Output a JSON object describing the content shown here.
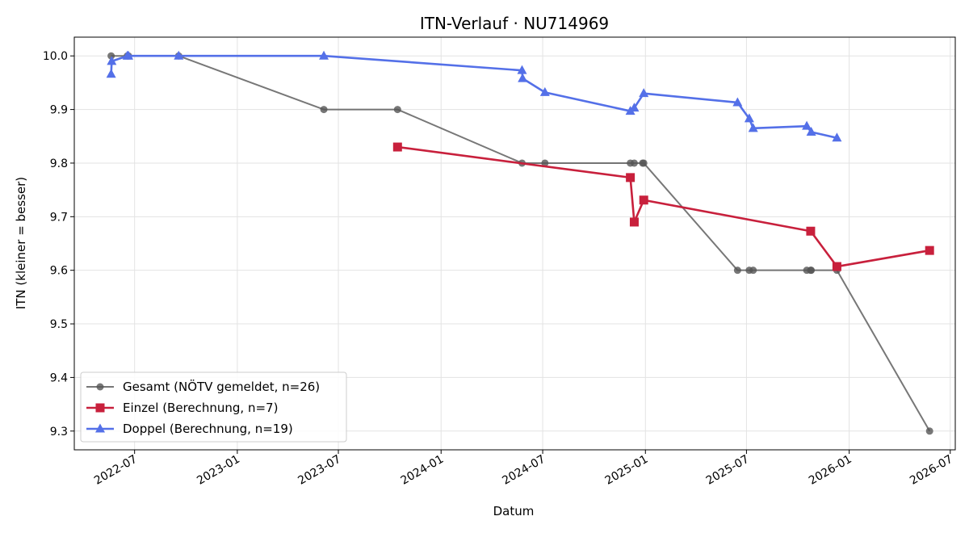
{
  "chart_data": {
    "type": "line",
    "title": "ITN-Verlauf · NU714969",
    "xlabel": "Datum",
    "ylabel": "ITN  (kleiner = besser)",
    "xlim": [
      "2022-03-15",
      "2026-07-10"
    ],
    "ylim": [
      9.265,
      10.035
    ],
    "x_ticks": [
      "2022-07",
      "2023-01",
      "2023-07",
      "2024-01",
      "2024-07",
      "2025-01",
      "2025-07",
      "2026-01",
      "2026-07"
    ],
    "y_ticks": [
      "9.3",
      "9.4",
      "9.5",
      "9.6",
      "9.7",
      "9.8",
      "9.9",
      "10.0"
    ],
    "grid": true,
    "legend_position": "lower-left",
    "series": [
      {
        "name": "Gesamt (NÖTV gemeldet, n=26)",
        "color": "#555555",
        "marker": "circle",
        "points": [
          {
            "x": "2022-05-20",
            "y": 10.0
          },
          {
            "x": "2022-06-18",
            "y": 10.0
          },
          {
            "x": "2022-06-20",
            "y": 10.0
          },
          {
            "x": "2022-09-18",
            "y": 10.0
          },
          {
            "x": "2023-06-05",
            "y": 9.9
          },
          {
            "x": "2023-10-15",
            "y": 9.9
          },
          {
            "x": "2024-05-25",
            "y": 9.8
          },
          {
            "x": "2024-07-05",
            "y": 9.8
          },
          {
            "x": "2024-12-05",
            "y": 9.8
          },
          {
            "x": "2024-12-12",
            "y": 9.8
          },
          {
            "x": "2024-12-27",
            "y": 9.8
          },
          {
            "x": "2024-12-29",
            "y": 9.8
          },
          {
            "x": "2025-06-15",
            "y": 9.6
          },
          {
            "x": "2025-07-06",
            "y": 9.6
          },
          {
            "x": "2025-07-13",
            "y": 9.6
          },
          {
            "x": "2025-10-17",
            "y": 9.6
          },
          {
            "x": "2025-10-24",
            "y": 9.6
          },
          {
            "x": "2025-10-25",
            "y": 9.6
          },
          {
            "x": "2025-12-10",
            "y": 9.6
          },
          {
            "x": "2026-05-25",
            "y": 9.3
          }
        ]
      },
      {
        "name": "Einzel (Berechnung, n=7)",
        "color": "#c8203c",
        "marker": "square",
        "points": [
          {
            "x": "2023-10-15",
            "y": 9.83
          },
          {
            "x": "2024-12-05",
            "y": 9.773
          },
          {
            "x": "2024-12-12",
            "y": 9.69
          },
          {
            "x": "2024-12-29",
            "y": 9.731
          },
          {
            "x": "2025-10-24",
            "y": 9.673
          },
          {
            "x": "2025-12-10",
            "y": 9.607
          },
          {
            "x": "2026-05-25",
            "y": 9.637
          }
        ]
      },
      {
        "name": "Doppel (Berechnung, n=19)",
        "color": "#5470e8",
        "marker": "triangle",
        "points": [
          {
            "x": "2022-05-20",
            "y": 9.966
          },
          {
            "x": "2022-05-21",
            "y": 9.99
          },
          {
            "x": "2022-06-18",
            "y": 10.0
          },
          {
            "x": "2022-06-20",
            "y": 10.0
          },
          {
            "x": "2022-09-18",
            "y": 10.0
          },
          {
            "x": "2023-06-05",
            "y": 10.0
          },
          {
            "x": "2024-05-25",
            "y": 9.973
          },
          {
            "x": "2024-05-26",
            "y": 9.958
          },
          {
            "x": "2024-07-05",
            "y": 9.932
          },
          {
            "x": "2024-12-05",
            "y": 9.897
          },
          {
            "x": "2024-12-12",
            "y": 9.903
          },
          {
            "x": "2024-12-29",
            "y": 9.93
          },
          {
            "x": "2025-06-15",
            "y": 9.913
          },
          {
            "x": "2025-07-06",
            "y": 9.883
          },
          {
            "x": "2025-07-13",
            "y": 9.865
          },
          {
            "x": "2025-10-17",
            "y": 9.869
          },
          {
            "x": "2025-10-25",
            "y": 9.858
          },
          {
            "x": "2025-12-10",
            "y": 9.847
          }
        ]
      }
    ]
  }
}
